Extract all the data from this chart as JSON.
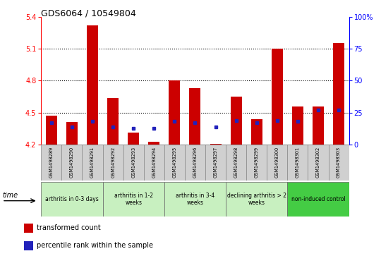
{
  "title": "GDS6064 / 10549804",
  "samples": [
    "GSM1498289",
    "GSM1498290",
    "GSM1498291",
    "GSM1498292",
    "GSM1498293",
    "GSM1498294",
    "GSM1498295",
    "GSM1498296",
    "GSM1498297",
    "GSM1498298",
    "GSM1498299",
    "GSM1498300",
    "GSM1498301",
    "GSM1498302",
    "GSM1498303"
  ],
  "red_values": [
    4.47,
    4.41,
    5.32,
    4.64,
    4.31,
    4.23,
    4.8,
    4.73,
    4.21,
    4.65,
    4.44,
    5.1,
    4.56,
    4.56,
    5.15
  ],
  "blue_percentiles": [
    17,
    14,
    18,
    14,
    13,
    13,
    18,
    17,
    14,
    19,
    17,
    19,
    18,
    27,
    27
  ],
  "ymin": 4.2,
  "ymax": 5.4,
  "yticks_left": [
    4.2,
    4.5,
    4.8,
    5.1,
    5.4
  ],
  "yticks_right": [
    0,
    25,
    50,
    75,
    100
  ],
  "groups": [
    {
      "label": "arthritis in 0-3 days",
      "start": 0,
      "end": 3,
      "color": "#c8f0c0"
    },
    {
      "label": "arthritis in 1-2\nweeks",
      "start": 3,
      "end": 6,
      "color": "#c8f0c0"
    },
    {
      "label": "arthritis in 3-4\nweeks",
      "start": 6,
      "end": 9,
      "color": "#c8f0c0"
    },
    {
      "label": "declining arthritis > 2\nweeks",
      "start": 9,
      "end": 12,
      "color": "#c8f0c0"
    },
    {
      "label": "non-induced control",
      "start": 12,
      "end": 15,
      "color": "#44cc44"
    }
  ],
  "bar_color": "#cc0000",
  "dot_color": "#2222bb",
  "bar_baseline": 4.2,
  "bar_width": 0.55,
  "sample_box_color": "#d0d0d0",
  "sample_box_edge": "#888888",
  "fig_bg": "#ffffff"
}
